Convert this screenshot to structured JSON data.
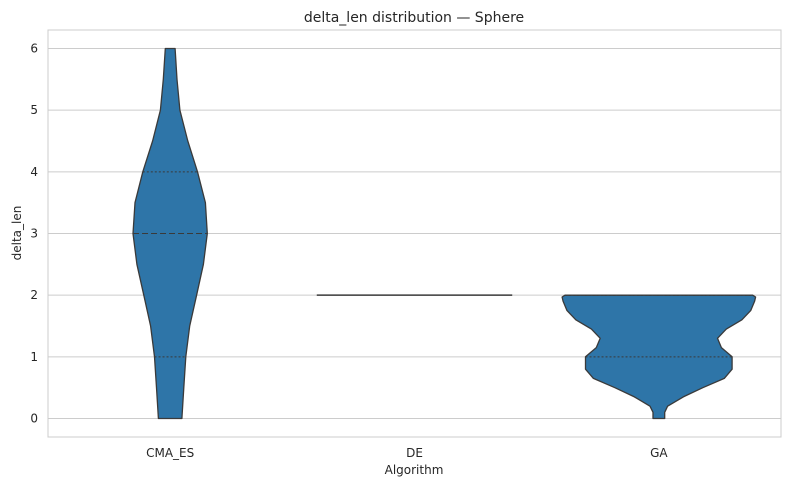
{
  "chart_data": {
    "type": "violin",
    "title": "delta_len distribution — Sphere",
    "xlabel": "Algorithm",
    "ylabel": "delta_len",
    "categories": [
      "CMA_ES",
      "DE",
      "GA"
    ],
    "ylim": [
      -0.3,
      6.3
    ],
    "yticks": [
      0,
      1,
      2,
      3,
      4,
      5,
      6
    ],
    "grid": true,
    "fill_color": "#2E75A8",
    "edge_color": "#3a3a3a",
    "violins": [
      {
        "category": "CMA_ES",
        "range": [
          0,
          6
        ],
        "quartiles": [
          1,
          3,
          4
        ],
        "profile": [
          [
            0,
            0.12
          ],
          [
            0.5,
            0.14
          ],
          [
            1,
            0.16
          ],
          [
            1.5,
            0.2
          ],
          [
            2,
            0.27
          ],
          [
            2.5,
            0.34
          ],
          [
            3,
            0.38
          ],
          [
            3.5,
            0.36
          ],
          [
            4,
            0.28
          ],
          [
            4.5,
            0.18
          ],
          [
            5,
            0.1
          ],
          [
            5.5,
            0.07
          ],
          [
            6,
            0.05
          ]
        ]
      },
      {
        "category": "DE",
        "range": [
          2,
          2
        ],
        "quartiles": [
          2,
          2,
          2
        ],
        "profile": [
          [
            2,
            1.0
          ]
        ]
      },
      {
        "category": "GA",
        "range": [
          0,
          2
        ],
        "quartiles": [
          1,
          2,
          2
        ],
        "profile": [
          [
            0,
            0.06
          ],
          [
            0.1,
            0.06
          ],
          [
            0.2,
            0.09
          ],
          [
            0.35,
            0.25
          ],
          [
            0.5,
            0.45
          ],
          [
            0.65,
            0.67
          ],
          [
            0.8,
            0.75
          ],
          [
            1,
            0.75
          ],
          [
            1.15,
            0.64
          ],
          [
            1.3,
            0.6
          ],
          [
            1.45,
            0.69
          ],
          [
            1.6,
            0.85
          ],
          [
            1.75,
            0.94
          ],
          [
            1.9,
            0.98
          ],
          [
            1.97,
            0.99
          ],
          [
            2,
            0.96
          ]
        ]
      }
    ]
  }
}
